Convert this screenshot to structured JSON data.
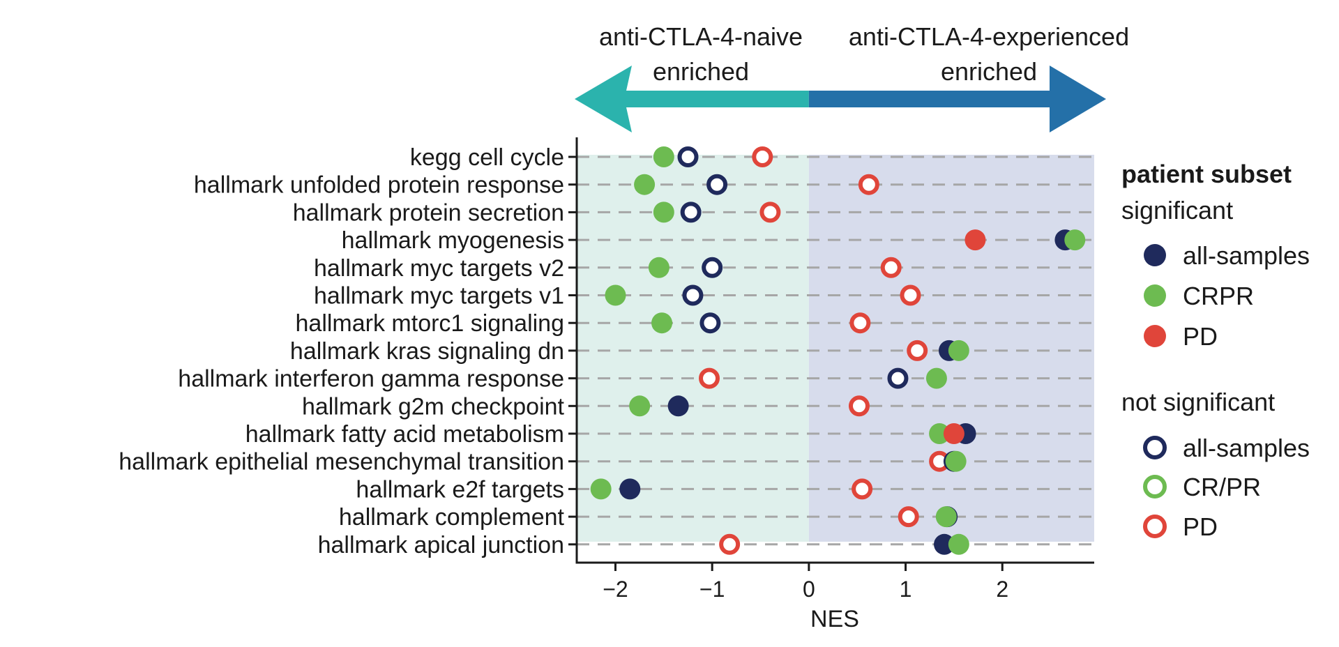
{
  "chart_data": {
    "type": "scatter",
    "title": "",
    "xlabel": "NES",
    "ylabel": "",
    "xlim": [
      -2.4,
      2.95
    ],
    "x_ticks": [
      -2,
      -1,
      0,
      1,
      2
    ],
    "x_tick_labels": [
      "−2",
      "−1",
      "0",
      "1",
      "2"
    ],
    "grid": "dashed horizontal lines per row",
    "categories": [
      "kegg cell cycle",
      "hallmark unfolded protein response",
      "hallmark protein secretion",
      "hallmark myogenesis",
      "hallmark myc targets v2",
      "hallmark myc targets v1",
      "hallmark mtorc1 signaling",
      "hallmark kras signaling dn",
      "hallmark interferon gamma response",
      "hallmark g2m checkpoint",
      "hallmark fatty acid metabolism",
      "hallmark epithelial mesenchymal transition",
      "hallmark e2f targets",
      "hallmark complement",
      "hallmark apical junction"
    ],
    "header": {
      "left_line1": "anti-CTLA-4-naive",
      "left_line2": "enriched",
      "right_line1": "anti-CTLA-4-experienced",
      "right_line2": "enriched",
      "left_color": "#2bb3ad",
      "right_color": "#2470a8"
    },
    "background": {
      "negative_color": "#dff0ec",
      "positive_color": "#d7dcec"
    },
    "series": [
      {
        "name": "all-samples",
        "color": "#1f2a5c",
        "points": [
          {
            "row": 0,
            "x": -1.25,
            "significant": false
          },
          {
            "row": 1,
            "x": -0.95,
            "significant": false
          },
          {
            "row": 2,
            "x": -1.22,
            "significant": false
          },
          {
            "row": 3,
            "x": 2.65,
            "significant": true
          },
          {
            "row": 4,
            "x": -1.0,
            "significant": false
          },
          {
            "row": 5,
            "x": -1.2,
            "significant": false
          },
          {
            "row": 6,
            "x": -1.02,
            "significant": false
          },
          {
            "row": 7,
            "x": 1.45,
            "significant": true
          },
          {
            "row": 8,
            "x": 0.92,
            "significant": false
          },
          {
            "row": 9,
            "x": -1.35,
            "significant": true
          },
          {
            "row": 10,
            "x": 1.62,
            "significant": true
          },
          {
            "row": 11,
            "x": 1.5,
            "significant": true
          },
          {
            "row": 12,
            "x": -1.85,
            "significant": true
          },
          {
            "row": 13,
            "x": 1.43,
            "significant": true
          },
          {
            "row": 14,
            "x": 1.4,
            "significant": true
          }
        ]
      },
      {
        "name": "CRPR",
        "color": "#6dbb51",
        "points": [
          {
            "row": 0,
            "x": -1.5,
            "significant": true
          },
          {
            "row": 1,
            "x": -1.7,
            "significant": true
          },
          {
            "row": 2,
            "x": -1.5,
            "significant": true
          },
          {
            "row": 3,
            "x": 2.75,
            "significant": true
          },
          {
            "row": 4,
            "x": -1.55,
            "significant": true
          },
          {
            "row": 5,
            "x": -2.0,
            "significant": true
          },
          {
            "row": 6,
            "x": -1.52,
            "significant": true
          },
          {
            "row": 7,
            "x": 1.55,
            "significant": true
          },
          {
            "row": 8,
            "x": 1.32,
            "significant": true
          },
          {
            "row": 9,
            "x": -1.75,
            "significant": true
          },
          {
            "row": 10,
            "x": 1.35,
            "significant": true
          },
          {
            "row": 11,
            "x": 1.52,
            "significant": true
          },
          {
            "row": 12,
            "x": -2.15,
            "significant": true
          },
          {
            "row": 13,
            "x": 1.42,
            "significant": true
          },
          {
            "row": 14,
            "x": 1.55,
            "significant": true
          }
        ]
      },
      {
        "name": "PD",
        "color": "#e0453a",
        "points": [
          {
            "row": 0,
            "x": -0.48,
            "significant": false
          },
          {
            "row": 1,
            "x": 0.62,
            "significant": false
          },
          {
            "row": 2,
            "x": -0.4,
            "significant": false
          },
          {
            "row": 3,
            "x": 1.72,
            "significant": true
          },
          {
            "row": 4,
            "x": 0.85,
            "significant": false
          },
          {
            "row": 5,
            "x": 1.05,
            "significant": false
          },
          {
            "row": 6,
            "x": 0.53,
            "significant": false
          },
          {
            "row": 7,
            "x": 1.12,
            "significant": false
          },
          {
            "row": 8,
            "x": -1.03,
            "significant": false
          },
          {
            "row": 9,
            "x": 0.52,
            "significant": false
          },
          {
            "row": 10,
            "x": 1.5,
            "significant": true
          },
          {
            "row": 11,
            "x": 1.35,
            "significant": false
          },
          {
            "row": 12,
            "x": 0.55,
            "significant": false
          },
          {
            "row": 13,
            "x": 1.03,
            "significant": false
          },
          {
            "row": 14,
            "x": -0.82,
            "significant": false
          }
        ]
      }
    ],
    "legend": {
      "position": "right",
      "title": "patient subset",
      "significant_label": "significant",
      "not_significant_label": "not significant",
      "significant_items": [
        "all-samples",
        "CRPR",
        "PD"
      ],
      "not_significant_items": [
        "all-samples",
        "CR/PR",
        "PD"
      ]
    }
  }
}
